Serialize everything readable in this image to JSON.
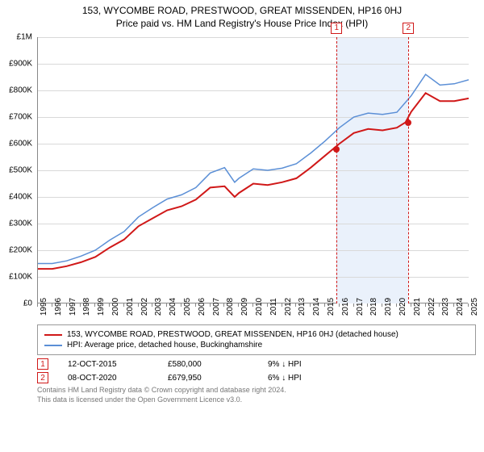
{
  "title_line1": "153, WYCOMBE ROAD, PRESTWOOD, GREAT MISSENDEN, HP16 0HJ",
  "title_line2": "Price paid vs. HM Land Registry's House Price Index (HPI)",
  "chart": {
    "type": "line",
    "x_min": 1995,
    "x_max": 2025,
    "y_min": 0,
    "y_max": 1000000,
    "y_ticks": [
      0,
      100000,
      200000,
      300000,
      400000,
      500000,
      600000,
      700000,
      800000,
      900000,
      1000000
    ],
    "y_tick_labels": [
      "£0",
      "£100K",
      "£200K",
      "£300K",
      "£400K",
      "£500K",
      "£600K",
      "£700K",
      "£800K",
      "£900K",
      "£1M"
    ],
    "x_ticks": [
      1995,
      1996,
      1997,
      1998,
      1999,
      2000,
      2001,
      2002,
      2003,
      2004,
      2005,
      2006,
      2007,
      2008,
      2009,
      2010,
      2011,
      2012,
      2013,
      2014,
      2015,
      2016,
      2017,
      2018,
      2019,
      2020,
      2021,
      2022,
      2023,
      2024,
      2025
    ],
    "grid_color": "#d9d9d9",
    "background_color": "#ffffff",
    "band": {
      "x_from": 2015.8,
      "x_to": 2020.8,
      "color": "#eaf1fb"
    },
    "series": [
      {
        "name": "property",
        "color": "#d01818",
        "line_width": 2,
        "points": [
          [
            1995,
            130000
          ],
          [
            1996,
            130000
          ],
          [
            1997,
            140000
          ],
          [
            1998,
            155000
          ],
          [
            1999,
            175000
          ],
          [
            2000,
            210000
          ],
          [
            2001,
            240000
          ],
          [
            2002,
            290000
          ],
          [
            2003,
            320000
          ],
          [
            2004,
            350000
          ],
          [
            2005,
            365000
          ],
          [
            2006,
            390000
          ],
          [
            2007,
            435000
          ],
          [
            2008,
            440000
          ],
          [
            2008.7,
            400000
          ],
          [
            2009,
            415000
          ],
          [
            2010,
            450000
          ],
          [
            2011,
            445000
          ],
          [
            2012,
            455000
          ],
          [
            2013,
            470000
          ],
          [
            2014,
            510000
          ],
          [
            2015,
            555000
          ],
          [
            2016,
            600000
          ],
          [
            2017,
            640000
          ],
          [
            2018,
            655000
          ],
          [
            2019,
            650000
          ],
          [
            2020,
            660000
          ],
          [
            2020.6,
            680000
          ],
          [
            2021,
            720000
          ],
          [
            2022,
            790000
          ],
          [
            2023,
            760000
          ],
          [
            2024,
            760000
          ],
          [
            2025,
            770000
          ]
        ]
      },
      {
        "name": "hpi",
        "color": "#5b8fd6",
        "line_width": 1.5,
        "points": [
          [
            1995,
            150000
          ],
          [
            1996,
            150000
          ],
          [
            1997,
            160000
          ],
          [
            1998,
            178000
          ],
          [
            1999,
            200000
          ],
          [
            2000,
            238000
          ],
          [
            2001,
            270000
          ],
          [
            2002,
            325000
          ],
          [
            2003,
            360000
          ],
          [
            2004,
            392000
          ],
          [
            2005,
            408000
          ],
          [
            2006,
            435000
          ],
          [
            2007,
            490000
          ],
          [
            2008,
            510000
          ],
          [
            2008.7,
            455000
          ],
          [
            2009,
            470000
          ],
          [
            2010,
            505000
          ],
          [
            2011,
            500000
          ],
          [
            2012,
            508000
          ],
          [
            2013,
            525000
          ],
          [
            2014,
            565000
          ],
          [
            2015,
            610000
          ],
          [
            2016,
            660000
          ],
          [
            2017,
            700000
          ],
          [
            2018,
            715000
          ],
          [
            2019,
            710000
          ],
          [
            2020,
            718000
          ],
          [
            2021,
            780000
          ],
          [
            2022,
            860000
          ],
          [
            2023,
            820000
          ],
          [
            2024,
            825000
          ],
          [
            2025,
            840000
          ]
        ]
      }
    ],
    "markers": [
      {
        "id": "1",
        "x": 2015.8,
        "y": 580000
      },
      {
        "id": "2",
        "x": 2020.8,
        "y": 679950
      }
    ]
  },
  "legend": {
    "items": [
      {
        "color": "#d01818",
        "label": "153, WYCOMBE ROAD, PRESTWOOD, GREAT MISSENDEN, HP16 0HJ (detached house)"
      },
      {
        "color": "#5b8fd6",
        "label": "HPI: Average price, detached house, Buckinghamshire"
      }
    ]
  },
  "marker_rows": [
    {
      "id": "1",
      "date": "12-OCT-2015",
      "price": "£580,000",
      "delta": "9% ↓ HPI"
    },
    {
      "id": "2",
      "date": "08-OCT-2020",
      "price": "£679,950",
      "delta": "6% ↓ HPI"
    }
  ],
  "attribution_line1": "Contains HM Land Registry data © Crown copyright and database right 2024.",
  "attribution_line2": "This data is licensed under the Open Government Licence v3.0."
}
